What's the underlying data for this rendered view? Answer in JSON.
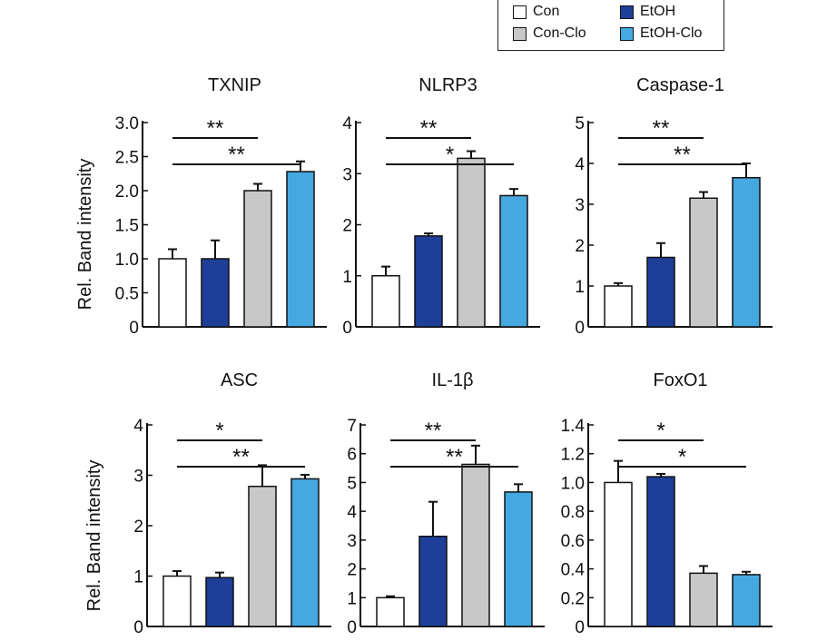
{
  "legend": [
    {
      "label": "Con",
      "color": "#ffffff"
    },
    {
      "label": "EtOH",
      "color": "#1e3f99"
    },
    {
      "label": "Con-Clo",
      "color": "#c8c8c8"
    },
    {
      "label": "EtOH-Clo",
      "color": "#45a8e0"
    }
  ],
  "ylabel": "Rel. Band intensity",
  "chart_data": [
    {
      "type": "bar",
      "title": "TXNIP",
      "categories": [
        "Con",
        "Con-Clo",
        "EtOH",
        "EtOH-Clo"
      ],
      "values": [
        1.0,
        1.0,
        2.0,
        2.28
      ],
      "errors": [
        0.14,
        0.27,
        0.1,
        0.15
      ],
      "ylim": [
        0,
        3.0
      ],
      "yticks": [
        "0",
        "0.5",
        "1.0",
        "1.5",
        "2.0",
        "2.5",
        "3.0"
      ],
      "significance": [
        {
          "from": 0,
          "to": 2,
          "label": "**"
        },
        {
          "from": 0,
          "to": 3,
          "label": "**"
        }
      ]
    },
    {
      "type": "bar",
      "title": "NLRP3",
      "categories": [
        "Con",
        "Con-Clo",
        "EtOH",
        "EtOH-Clo"
      ],
      "values": [
        1.0,
        1.78,
        3.3,
        2.57
      ],
      "errors": [
        0.18,
        0.05,
        0.14,
        0.13
      ],
      "ylim": [
        0,
        4
      ],
      "yticks": [
        "0",
        "1",
        "2",
        "3",
        "4"
      ],
      "significance": [
        {
          "from": 0,
          "to": 2,
          "label": "**"
        },
        {
          "from": 0,
          "to": 3,
          "label": "*"
        }
      ]
    },
    {
      "type": "bar",
      "title": "Caspase-1",
      "categories": [
        "Con",
        "Con-Clo",
        "EtOH",
        "EtOH-Clo"
      ],
      "values": [
        1.0,
        1.7,
        3.15,
        3.65
      ],
      "errors": [
        0.07,
        0.35,
        0.15,
        0.35
      ],
      "ylim": [
        0,
        5
      ],
      "yticks": [
        "0",
        "1",
        "2",
        "3",
        "4",
        "5"
      ],
      "significance": [
        {
          "from": 0,
          "to": 2,
          "label": "**"
        },
        {
          "from": 0,
          "to": 3,
          "label": "**"
        }
      ]
    },
    {
      "type": "bar",
      "title": "ASC",
      "categories": [
        "Con",
        "Con-Clo",
        "EtOH",
        "EtOH-Clo"
      ],
      "values": [
        1.0,
        0.97,
        2.78,
        2.93
      ],
      "errors": [
        0.1,
        0.1,
        0.42,
        0.08
      ],
      "ylim": [
        0,
        4
      ],
      "yticks": [
        "0",
        "1",
        "2",
        "3",
        "4"
      ],
      "significance": [
        {
          "from": 0,
          "to": 2,
          "label": "*"
        },
        {
          "from": 0,
          "to": 3,
          "label": "**"
        }
      ]
    },
    {
      "type": "bar",
      "title": "IL-1β",
      "categories": [
        "Con",
        "Con-Clo",
        "EtOH",
        "EtOH-Clo"
      ],
      "values": [
        1.0,
        3.13,
        5.63,
        4.67
      ],
      "errors": [
        0.05,
        1.2,
        0.65,
        0.27
      ],
      "ylim": [
        0,
        7
      ],
      "yticks": [
        "0",
        "1",
        "2",
        "3",
        "4",
        "5",
        "6",
        "7"
      ],
      "significance": [
        {
          "from": 0,
          "to": 2,
          "label": "**"
        },
        {
          "from": 0,
          "to": 3,
          "label": "**"
        }
      ]
    },
    {
      "type": "bar",
      "title": "FoxO1",
      "categories": [
        "Con",
        "Con-Clo",
        "EtOH",
        "EtOH-Clo"
      ],
      "values": [
        1.0,
        1.04,
        0.37,
        0.36
      ],
      "errors": [
        0.15,
        0.02,
        0.05,
        0.02
      ],
      "ylim": [
        0,
        1.4
      ],
      "yticks": [
        "0",
        "0.2",
        "0.4",
        "0.6",
        "0.8",
        "1.0",
        "1.2",
        "1.4"
      ],
      "significance": [
        {
          "from": 0,
          "to": 2,
          "label": "*"
        },
        {
          "from": 0,
          "to": 3,
          "label": "*"
        }
      ]
    }
  ]
}
